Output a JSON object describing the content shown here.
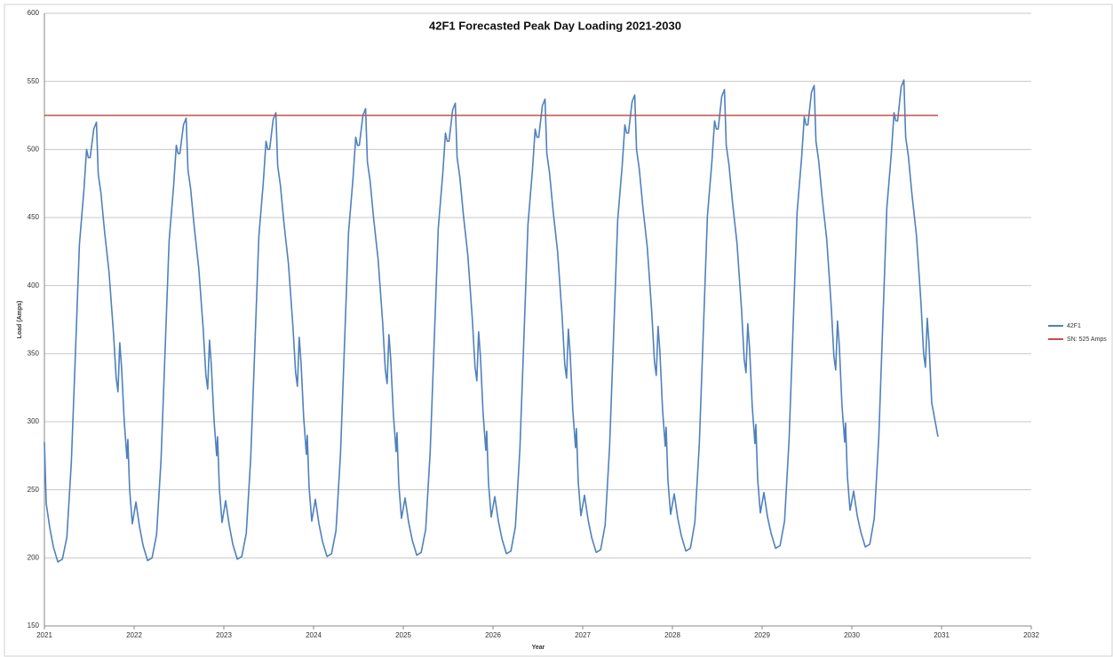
{
  "chart_data": {
    "type": "line",
    "title": "42F1 Forecasted  Peak Day Loading 2021-2030",
    "x_label": "Year",
    "y_label": "Load (Amps)",
    "xlim": [
      2021,
      2032
    ],
    "xticks": [
      2021,
      2022,
      2023,
      2024,
      2025,
      2026,
      2027,
      2028,
      2029,
      2030,
      2031,
      2032
    ],
    "ylim": [
      150,
      600
    ],
    "yticks": [
      150,
      200,
      250,
      300,
      350,
      400,
      450,
      500,
      550,
      600
    ],
    "grid": true,
    "legend": "right",
    "series": [
      {
        "name": "42F1",
        "color": "#4f81bd",
        "x": [
          2021.0,
          2021.02,
          2021.06,
          2021.1,
          2021.15,
          2021.2,
          2021.25,
          2021.3,
          2021.34,
          2021.39,
          2021.44,
          2021.47,
          2021.49,
          2021.51,
          2021.55,
          2021.58,
          2021.6,
          2021.63,
          2021.67,
          2021.72,
          2021.77,
          2021.8,
          2021.82,
          2021.84,
          2021.86,
          2021.89,
          2021.92,
          2021.93,
          2021.95,
          2021.98,
          2022.02,
          2022.06,
          2022.1,
          2022.15,
          2022.2,
          2022.25,
          2022.3,
          2022.34,
          2022.39,
          2022.44,
          2022.47,
          2022.49,
          2022.51,
          2022.55,
          2022.58,
          2022.6,
          2022.63,
          2022.67,
          2022.72,
          2022.77,
          2022.8,
          2022.82,
          2022.84,
          2022.86,
          2022.89,
          2022.92,
          2022.93,
          2022.95,
          2022.98,
          2023.02,
          2023.06,
          2023.1,
          2023.15,
          2023.2,
          2023.25,
          2023.3,
          2023.34,
          2023.39,
          2023.44,
          2023.47,
          2023.49,
          2023.51,
          2023.55,
          2023.58,
          2023.6,
          2023.63,
          2023.67,
          2023.72,
          2023.77,
          2023.8,
          2023.82,
          2023.84,
          2023.86,
          2023.89,
          2023.92,
          2023.93,
          2023.95,
          2023.98,
          2024.02,
          2024.06,
          2024.1,
          2024.15,
          2024.2,
          2024.25,
          2024.3,
          2024.34,
          2024.39,
          2024.44,
          2024.47,
          2024.49,
          2024.51,
          2024.55,
          2024.58,
          2024.6,
          2024.63,
          2024.67,
          2024.72,
          2024.77,
          2024.8,
          2024.82,
          2024.84,
          2024.86,
          2024.89,
          2024.92,
          2024.93,
          2024.95,
          2024.98,
          2025.02,
          2025.06,
          2025.1,
          2025.15,
          2025.2,
          2025.25,
          2025.3,
          2025.34,
          2025.39,
          2025.44,
          2025.47,
          2025.49,
          2025.51,
          2025.55,
          2025.58,
          2025.6,
          2025.63,
          2025.67,
          2025.72,
          2025.77,
          2025.8,
          2025.82,
          2025.84,
          2025.86,
          2025.89,
          2025.92,
          2025.93,
          2025.95,
          2025.98,
          2026.02,
          2026.06,
          2026.1,
          2026.15,
          2026.2,
          2026.25,
          2026.3,
          2026.34,
          2026.39,
          2026.44,
          2026.47,
          2026.49,
          2026.51,
          2026.55,
          2026.58,
          2026.6,
          2026.63,
          2026.67,
          2026.72,
          2026.77,
          2026.8,
          2026.82,
          2026.84,
          2026.86,
          2026.89,
          2026.92,
          2026.93,
          2026.95,
          2026.98,
          2027.02,
          2027.06,
          2027.1,
          2027.15,
          2027.2,
          2027.25,
          2027.3,
          2027.34,
          2027.39,
          2027.44,
          2027.47,
          2027.49,
          2027.51,
          2027.55,
          2027.58,
          2027.6,
          2027.63,
          2027.67,
          2027.72,
          2027.77,
          2027.8,
          2027.82,
          2027.84,
          2027.86,
          2027.89,
          2027.92,
          2027.93,
          2027.95,
          2027.98,
          2028.02,
          2028.06,
          2028.1,
          2028.15,
          2028.2,
          2028.25,
          2028.3,
          2028.34,
          2028.39,
          2028.44,
          2028.47,
          2028.49,
          2028.51,
          2028.55,
          2028.58,
          2028.6,
          2028.63,
          2028.67,
          2028.72,
          2028.77,
          2028.8,
          2028.82,
          2028.84,
          2028.86,
          2028.89,
          2028.92,
          2028.93,
          2028.95,
          2028.98,
          2029.02,
          2029.06,
          2029.1,
          2029.15,
          2029.2,
          2029.25,
          2029.3,
          2029.34,
          2029.39,
          2029.44,
          2029.47,
          2029.49,
          2029.51,
          2029.55,
          2029.58,
          2029.6,
          2029.63,
          2029.67,
          2029.72,
          2029.77,
          2029.8,
          2029.82,
          2029.84,
          2029.86,
          2029.89,
          2029.92,
          2029.93,
          2029.95,
          2029.98,
          2030.02,
          2030.06,
          2030.1,
          2030.15,
          2030.2,
          2030.25,
          2030.3,
          2030.34,
          2030.39,
          2030.44,
          2030.47,
          2030.49,
          2030.51,
          2030.55,
          2030.58,
          2030.6,
          2030.63,
          2030.67,
          2030.72,
          2030.77,
          2030.8,
          2030.82,
          2030.84,
          2030.86,
          2030.89,
          2030.96
        ],
        "values": [
          285,
          240,
          222,
          208,
          197,
          199,
          215,
          270,
          340,
          430,
          470,
          500,
          494,
          494,
          515,
          520,
          482,
          468,
          440,
          410,
          365,
          332,
          322,
          358,
          340,
          300,
          273,
          287,
          250,
          225,
          241,
          223,
          209,
          198,
          200,
          217,
          272,
          343,
          433,
          473,
          503,
          497,
          497,
          518,
          523,
          485,
          471,
          443,
          413,
          368,
          334,
          324,
          360,
          342,
          302,
          275,
          289,
          251,
          226,
          242,
          224,
          210,
          199,
          201,
          218,
          274,
          345,
          436,
          476,
          506,
          500,
          500,
          522,
          527,
          488,
          474,
          446,
          416,
          370,
          336,
          326,
          362,
          344,
          303,
          276,
          290,
          252,
          227,
          243,
          225,
          212,
          201,
          203,
          220,
          276,
          348,
          439,
          479,
          509,
          503,
          503,
          525,
          530,
          491,
          477,
          449,
          419,
          373,
          338,
          328,
          364,
          346,
          305,
          278,
          292,
          254,
          229,
          244,
          226,
          213,
          202,
          204,
          221,
          278,
          350,
          442,
          482,
          512,
          506,
          506,
          529,
          534,
          494,
          480,
          452,
          422,
          375,
          340,
          330,
          366,
          348,
          306,
          279,
          293,
          255,
          230,
          245,
          227,
          214,
          203,
          205,
          223,
          280,
          353,
          445,
          485,
          515,
          509,
          509,
          532,
          537,
          497,
          483,
          455,
          425,
          378,
          342,
          332,
          368,
          350,
          308,
          281,
          295,
          256,
          231,
          246,
          228,
          215,
          204,
          206,
          224,
          282,
          355,
          448,
          488,
          518,
          512,
          512,
          535,
          540,
          500,
          486,
          458,
          428,
          380,
          344,
          334,
          370,
          352,
          309,
          282,
          296,
          257,
          232,
          247,
          229,
          216,
          205,
          207,
          226,
          284,
          358,
          451,
          491,
          521,
          515,
          515,
          539,
          544,
          503,
          489,
          461,
          431,
          383,
          346,
          336,
          372,
          354,
          311,
          284,
          298,
          258,
          233,
          248,
          230,
          218,
          207,
          209,
          227,
          286,
          360,
          454,
          494,
          524,
          518,
          518,
          542,
          547,
          506,
          492,
          464,
          434,
          385,
          348,
          338,
          374,
          356,
          312,
          285,
          299,
          260,
          235,
          249,
          231,
          219,
          208,
          210,
          229,
          288,
          363,
          457,
          497,
          527,
          521,
          521,
          546,
          551,
          509,
          495,
          467,
          437,
          388,
          350,
          340,
          376,
          358,
          314,
          289
        ]
      },
      {
        "name": "SN: 525 Amps",
        "color": "#c0504d",
        "x": [
          2021,
          2030.96
        ],
        "values": [
          525,
          525
        ]
      }
    ]
  }
}
